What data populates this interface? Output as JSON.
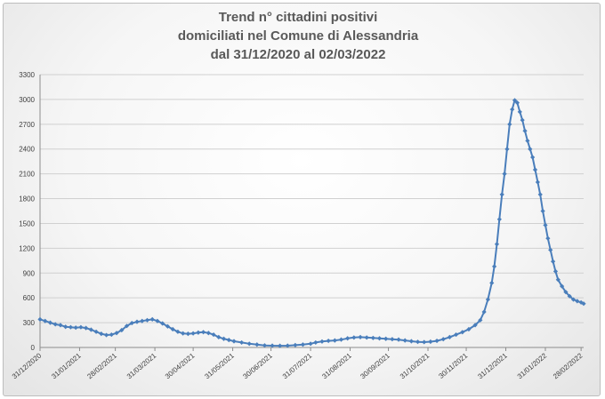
{
  "chart_data": {
    "type": "line",
    "title_lines": [
      "Trend n° cittadini positivi",
      "domiciliati nel Comune di Alessandria",
      "dal 31/12/2020 al 02/03/2022"
    ],
    "xlabel": "",
    "ylabel": "",
    "ylim": [
      0,
      3300
    ],
    "yticks": [
      0,
      300,
      600,
      900,
      1200,
      1500,
      1800,
      2100,
      2400,
      2700,
      3000,
      3300
    ],
    "xlim": [
      "2020-12-31",
      "2022-03-02"
    ],
    "xticks": [
      "31/12/2020",
      "31/01/2021",
      "28/02/2021",
      "31/03/2021",
      "30/04/2021",
      "31/05/2021",
      "30/06/2021",
      "31/07/2021",
      "31/08/2021",
      "30/09/2021",
      "31/10/2021",
      "30/11/2021",
      "31/12/2021",
      "31/01/2022",
      "28/02/2022"
    ],
    "grid": true,
    "legend": "none",
    "series_color": "#4a7ebb",
    "series": [
      {
        "points": [
          [
            "2020-12-31",
            340
          ],
          [
            "2021-01-04",
            320
          ],
          [
            "2021-01-08",
            300
          ],
          [
            "2021-01-12",
            280
          ],
          [
            "2021-01-16",
            270
          ],
          [
            "2021-01-20",
            250
          ],
          [
            "2021-01-24",
            245
          ],
          [
            "2021-01-28",
            240
          ],
          [
            "2021-02-01",
            245
          ],
          [
            "2021-02-05",
            235
          ],
          [
            "2021-02-09",
            215
          ],
          [
            "2021-02-13",
            190
          ],
          [
            "2021-02-17",
            165
          ],
          [
            "2021-02-21",
            150
          ],
          [
            "2021-02-25",
            155
          ],
          [
            "2021-03-01",
            175
          ],
          [
            "2021-03-05",
            210
          ],
          [
            "2021-03-09",
            260
          ],
          [
            "2021-03-13",
            295
          ],
          [
            "2021-03-17",
            310
          ],
          [
            "2021-03-21",
            320
          ],
          [
            "2021-03-25",
            330
          ],
          [
            "2021-03-29",
            340
          ],
          [
            "2021-04-02",
            320
          ],
          [
            "2021-04-06",
            290
          ],
          [
            "2021-04-10",
            255
          ],
          [
            "2021-04-14",
            220
          ],
          [
            "2021-04-18",
            190
          ],
          [
            "2021-04-22",
            170
          ],
          [
            "2021-04-26",
            165
          ],
          [
            "2021-04-30",
            170
          ],
          [
            "2021-05-04",
            180
          ],
          [
            "2021-05-08",
            185
          ],
          [
            "2021-05-12",
            175
          ],
          [
            "2021-05-16",
            155
          ],
          [
            "2021-05-20",
            125
          ],
          [
            "2021-05-24",
            105
          ],
          [
            "2021-05-28",
            90
          ],
          [
            "2021-06-01",
            75
          ],
          [
            "2021-06-07",
            60
          ],
          [
            "2021-06-13",
            45
          ],
          [
            "2021-06-19",
            35
          ],
          [
            "2021-06-25",
            25
          ],
          [
            "2021-07-01",
            22
          ],
          [
            "2021-07-07",
            20
          ],
          [
            "2021-07-13",
            22
          ],
          [
            "2021-07-19",
            28
          ],
          [
            "2021-07-25",
            35
          ],
          [
            "2021-07-31",
            45
          ],
          [
            "2021-08-04",
            60
          ],
          [
            "2021-08-09",
            72
          ],
          [
            "2021-08-14",
            80
          ],
          [
            "2021-08-19",
            85
          ],
          [
            "2021-08-24",
            95
          ],
          [
            "2021-08-29",
            110
          ],
          [
            "2021-09-03",
            120
          ],
          [
            "2021-09-08",
            125
          ],
          [
            "2021-09-13",
            120
          ],
          [
            "2021-09-18",
            115
          ],
          [
            "2021-09-23",
            110
          ],
          [
            "2021-09-28",
            105
          ],
          [
            "2021-10-03",
            100
          ],
          [
            "2021-10-08",
            95
          ],
          [
            "2021-10-13",
            85
          ],
          [
            "2021-10-18",
            75
          ],
          [
            "2021-10-23",
            68
          ],
          [
            "2021-10-28",
            65
          ],
          [
            "2021-11-02",
            70
          ],
          [
            "2021-11-07",
            80
          ],
          [
            "2021-11-12",
            100
          ],
          [
            "2021-11-17",
            125
          ],
          [
            "2021-11-22",
            155
          ],
          [
            "2021-11-27",
            185
          ],
          [
            "2021-12-02",
            220
          ],
          [
            "2021-12-07",
            270
          ],
          [
            "2021-12-11",
            330
          ],
          [
            "2021-12-14",
            430
          ],
          [
            "2021-12-17",
            580
          ],
          [
            "2021-12-20",
            780
          ],
          [
            "2021-12-22",
            980
          ],
          [
            "2021-12-24",
            1250
          ],
          [
            "2021-12-26",
            1550
          ],
          [
            "2021-12-28",
            1850
          ],
          [
            "2021-12-30",
            2100
          ],
          [
            "2022-01-01",
            2400
          ],
          [
            "2022-01-03",
            2700
          ],
          [
            "2022-01-05",
            2880
          ],
          [
            "2022-01-07",
            2990
          ],
          [
            "2022-01-09",
            2960
          ],
          [
            "2022-01-11",
            2850
          ],
          [
            "2022-01-13",
            2750
          ],
          [
            "2022-01-15",
            2620
          ],
          [
            "2022-01-17",
            2500
          ],
          [
            "2022-01-19",
            2400
          ],
          [
            "2022-01-21",
            2300
          ],
          [
            "2022-01-23",
            2150
          ],
          [
            "2022-01-25",
            2000
          ],
          [
            "2022-01-27",
            1850
          ],
          [
            "2022-01-29",
            1650
          ],
          [
            "2022-01-31",
            1480
          ],
          [
            "2022-02-02",
            1320
          ],
          [
            "2022-02-04",
            1180
          ],
          [
            "2022-02-06",
            1040
          ],
          [
            "2022-02-08",
            920
          ],
          [
            "2022-02-10",
            820
          ],
          [
            "2022-02-13",
            740
          ],
          [
            "2022-02-16",
            670
          ],
          [
            "2022-02-19",
            620
          ],
          [
            "2022-02-22",
            580
          ],
          [
            "2022-02-25",
            560
          ],
          [
            "2022-02-28",
            545
          ],
          [
            "2022-03-02",
            530
          ]
        ]
      }
    ]
  }
}
